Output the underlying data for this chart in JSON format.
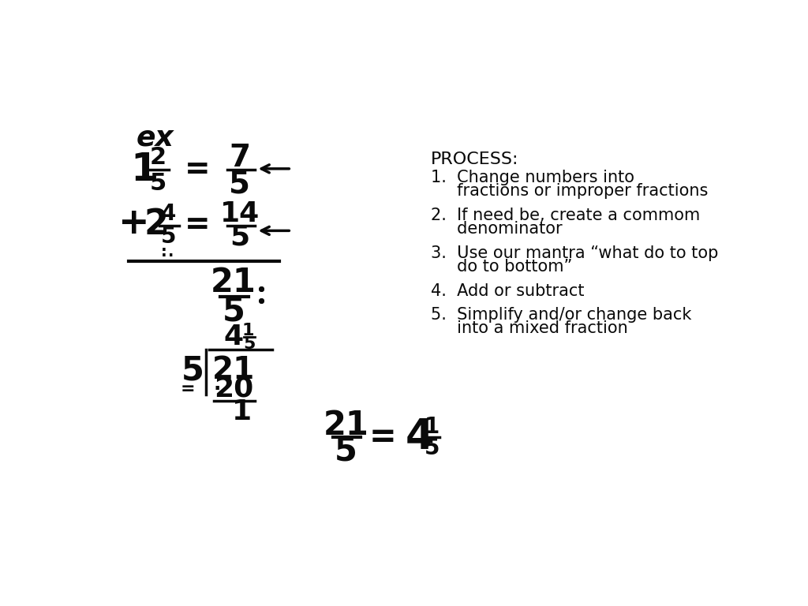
{
  "bg_color": "#ffffff",
  "text_color": "#111111",
  "process_title": "PROCESS:",
  "process_steps_lines": [
    [
      "1.  Change numbers into",
      "    fractions or improper fractions"
    ],
    [
      "2.  If need be, create a commom",
      "    denominator"
    ],
    [
      "3.  Use our mantra “what do to top",
      "    do to bottom”"
    ],
    [
      "4.  Add or subtract"
    ],
    [
      "5.  Simplify and/or change back",
      "    into a mixed fraction"
    ]
  ]
}
